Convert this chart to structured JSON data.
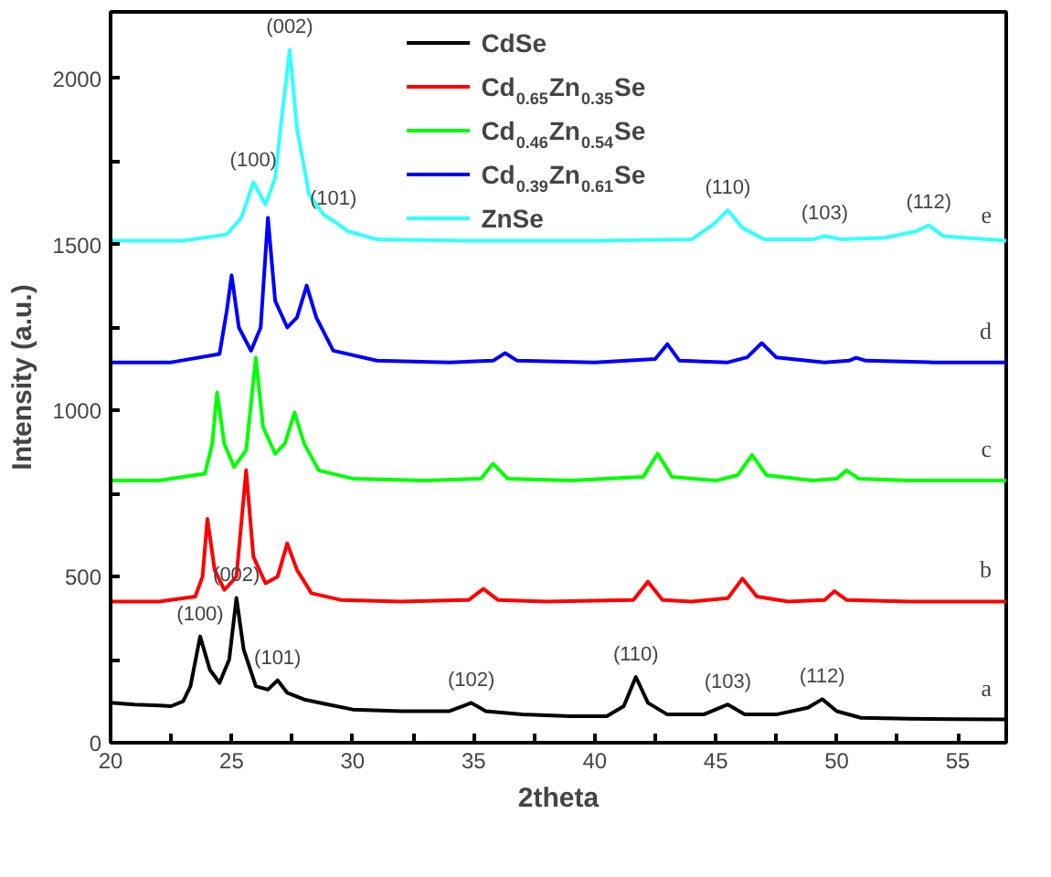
{
  "chart_data": {
    "type": "line",
    "xlabel": "2theta",
    "ylabel": "Intensity (a.u.)",
    "xlim": [
      20,
      57
    ],
    "ylim": [
      0,
      2200
    ],
    "xticks": [
      20,
      {
        "value": 22.5,
        "label": null
      },
      25,
      {
        "value": 27.5,
        "label": null
      },
      30,
      {
        "value": 32.5,
        "label": null
      },
      35,
      {
        "value": 37.5,
        "label": null
      },
      40,
      {
        "value": 42.5,
        "label": null
      },
      45,
      {
        "value": 47.5,
        "label": null
      },
      50,
      {
        "value": 52.5,
        "label": null
      },
      55
    ],
    "yticks": [
      0,
      {
        "value": 250,
        "label": null
      },
      500,
      {
        "value": 750,
        "label": null
      },
      1000,
      {
        "value": 1250,
        "label": null
      },
      1500,
      {
        "value": 1750,
        "label": null
      },
      2000
    ],
    "grid": false,
    "legend": "top",
    "marker": "none",
    "line_style": "solid",
    "series": [
      {
        "name": "CdSe",
        "color": "#000000",
        "x": [
          20,
          21,
          22,
          22.5,
          23,
          23.3,
          23.7,
          24.1,
          24.5,
          24.9,
          25.2,
          25.5,
          26,
          26.5,
          26.9,
          27.3,
          28,
          29,
          30,
          32,
          34,
          34.9,
          35.5,
          37,
          39,
          40.5,
          41.2,
          41.7,
          42.2,
          43,
          44.5,
          45.5,
          46.2,
          47.5,
          48.8,
          49.4,
          50,
          51,
          53,
          55,
          57
        ],
        "values": [
          120,
          115,
          112,
          110,
          125,
          170,
          320,
          220,
          180,
          250,
          436,
          280,
          170,
          160,
          188,
          150,
          130,
          115,
          100,
          95,
          95,
          120,
          95,
          85,
          80,
          80,
          110,
          198,
          120,
          85,
          85,
          115,
          85,
          85,
          105,
          131,
          95,
          75,
          72,
          71,
          70
        ]
      },
      {
        "name": "Cd$_{0.65}$Zn$_{0.35}$Se",
        "color": "#ff0000",
        "x": [
          20,
          22,
          23.5,
          23.8,
          24.0,
          24.3,
          24.7,
          25.2,
          25.6,
          25.9,
          26.4,
          26.9,
          27.3,
          27.7,
          28.3,
          29.5,
          32,
          34.8,
          35.4,
          36,
          38,
          41.6,
          42.2,
          42.8,
          44,
          45.5,
          46.1,
          46.7,
          48,
          49.5,
          49.9,
          50.4,
          53,
          57
        ],
        "values": [
          425,
          425,
          440,
          500,
          674,
          520,
          460,
          500,
          820,
          560,
          480,
          500,
          600,
          520,
          450,
          430,
          425,
          430,
          463,
          430,
          425,
          430,
          485,
          430,
          425,
          435,
          494,
          440,
          425,
          430,
          456,
          430,
          425,
          425
        ]
      },
      {
        "name": "Cd$_{0.46}$Zn$_{0.54}$Se",
        "color": "#00ff00",
        "x": [
          20,
          22,
          23.9,
          24.2,
          24.4,
          24.7,
          25.1,
          25.6,
          26.0,
          26.3,
          26.8,
          27.2,
          27.6,
          28,
          28.6,
          30,
          33,
          35.3,
          35.8,
          36.4,
          39,
          42,
          42.6,
          43.2,
          45,
          45.9,
          46.5,
          47.1,
          49,
          50,
          50.4,
          50.9,
          53,
          57
        ],
        "values": [
          789,
          789,
          810,
          900,
          1054,
          900,
          830,
          880,
          1159,
          950,
          870,
          900,
          994,
          900,
          820,
          795,
          789,
          795,
          840,
          795,
          789,
          800,
          870,
          800,
          789,
          805,
          866,
          805,
          789,
          795,
          820,
          795,
          789,
          789
        ]
      },
      {
        "name": "Cd$_{0.39}$Zn$_{0.61}$Se",
        "color": "#0000ff",
        "x": [
          20,
          22.5,
          24.5,
          24.8,
          25.0,
          25.3,
          25.8,
          26.2,
          26.5,
          26.8,
          27.3,
          27.7,
          28.1,
          28.5,
          29.2,
          31,
          34,
          35.8,
          36.3,
          36.8,
          40,
          42.5,
          43.0,
          43.5,
          45.5,
          46.3,
          46.9,
          47.5,
          49.5,
          50.5,
          50.8,
          51.2,
          54,
          57
        ],
        "values": [
          1145,
          1145,
          1170,
          1300,
          1407,
          1250,
          1180,
          1250,
          1580,
          1330,
          1250,
          1280,
          1376,
          1280,
          1180,
          1150,
          1145,
          1150,
          1173,
          1150,
          1145,
          1155,
          1200,
          1150,
          1145,
          1160,
          1203,
          1160,
          1145,
          1150,
          1159,
          1150,
          1145,
          1145
        ]
      },
      {
        "name": "ZnSe",
        "color": "#33ffff",
        "x": [
          20,
          23,
          24.8,
          25.4,
          25.9,
          26.4,
          26.8,
          27.1,
          27.4,
          27.7,
          28.2,
          28.8,
          29.2,
          29.8,
          31,
          35,
          40,
          44,
          44.9,
          45.5,
          46.1,
          47,
          49,
          49.5,
          50.2,
          52,
          53.3,
          53.8,
          54.4,
          57
        ],
        "values": [
          1511,
          1511,
          1530,
          1580,
          1687,
          1620,
          1700,
          1900,
          2086,
          1850,
          1650,
          1590,
          1571,
          1540,
          1515,
          1511,
          1511,
          1515,
          1560,
          1603,
          1550,
          1515,
          1515,
          1525,
          1515,
          1520,
          1540,
          1558,
          1525,
          1511
        ]
      }
    ],
    "annotations": [
      {
        "text": "(100)",
        "x": 25.9,
        "y": 1687
      },
      {
        "text": "(002)",
        "x": 27.4,
        "y": 2086
      },
      {
        "text": "(101)",
        "x": 29.2,
        "y": 1571
      },
      {
        "text": "(110)",
        "x": 45.5,
        "y": 1603
      },
      {
        "text": "(103)",
        "x": 49.5,
        "y": 1525
      },
      {
        "text": "(112)",
        "x": 53.8,
        "y": 1558
      },
      {
        "text": "e",
        "x": 57,
        "y": 1511
      },
      {
        "text": "d",
        "x": 57,
        "y": 1145
      },
      {
        "text": "c",
        "x": 57,
        "y": 789
      },
      {
        "text": "b",
        "x": 57,
        "y": 425
      },
      {
        "text": "a",
        "x": 57,
        "y": 70
      },
      {
        "text": "(100)",
        "x": 23.7,
        "y": 320
      },
      {
        "text": "(002)",
        "x": 25.2,
        "y": 436
      },
      {
        "text": "(101)",
        "x": 26.9,
        "y": 188
      },
      {
        "text": "(102)",
        "x": 34.9,
        "y": 120
      },
      {
        "text": "(110)",
        "x": 41.7,
        "y": 198
      },
      {
        "text": "(103)",
        "x": 45.5,
        "y": 115
      },
      {
        "text": "(112)",
        "x": 49.4,
        "y": 131
      }
    ]
  }
}
